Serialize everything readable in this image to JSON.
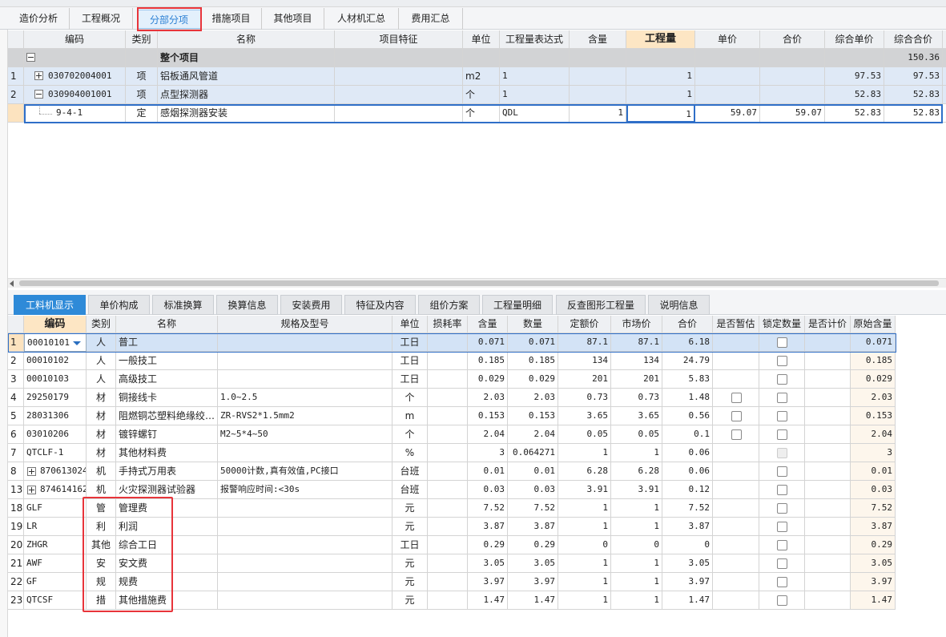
{
  "top_tabs": [
    "造价分析",
    "工程概况",
    "分部分项",
    "措施项目",
    "其他项目",
    "人材机汇总",
    "费用汇总"
  ],
  "upper_table": {
    "headers": [
      "编码",
      "类别",
      "名称",
      "项目特征",
      "单位",
      "工程量表达式",
      "含量",
      "工程量",
      "单价",
      "合价",
      "综合单价",
      "综合合价"
    ],
    "rows": [
      [
        null,
        null,
        null,
        "整个项目",
        null,
        null,
        null,
        null,
        null,
        null,
        null,
        null,
        "150.36"
      ],
      [
        "1",
        "030702004001",
        "项",
        "铝板通风管道",
        null,
        "m2",
        "1",
        null,
        "1",
        null,
        null,
        "97.53",
        "97.53"
      ],
      [
        "2",
        "030904001001",
        "项",
        "点型探测器",
        null,
        "个",
        "1",
        null,
        "1",
        null,
        null,
        "52.83",
        "52.83"
      ],
      [
        null,
        "9-4-1",
        "定",
        "感烟探测器安装",
        null,
        "个",
        "QDL",
        "1",
        "1",
        "59.07",
        "59.07",
        "52.83",
        "52.83"
      ]
    ]
  },
  "lower_tabs": [
    "工料机显示",
    "单价构成",
    "标准换算",
    "换算信息",
    "安装费用",
    "特征及内容",
    "组价方案",
    "工程量明细",
    "反查图形工程量",
    "说明信息"
  ],
  "lower_table": {
    "headers": [
      "编码",
      "类别",
      "名称",
      "规格及型号",
      "单位",
      "损耗率",
      "含量",
      "数量",
      "定额价",
      "市场价",
      "合价",
      "是否暂估",
      "锁定数量",
      "是否计价",
      "原始含量"
    ],
    "rows": [
      [
        "1",
        "00010101",
        "人",
        "普工",
        null,
        "工日",
        null,
        "0.071",
        "0.071",
        "87.1",
        "87.1",
        "6.18",
        null,
        null,
        null,
        "0.071"
      ],
      [
        "2",
        "00010102",
        "人",
        "一般技工",
        null,
        "工日",
        null,
        "0.185",
        "0.185",
        "134",
        "134",
        "24.79",
        null,
        null,
        null,
        "0.185"
      ],
      [
        "3",
        "00010103",
        "人",
        "高级技工",
        null,
        "工日",
        null,
        "0.029",
        "0.029",
        "201",
        "201",
        "5.83",
        null,
        null,
        null,
        "0.029"
      ],
      [
        "4",
        "29250179",
        "材",
        "铜接线卡",
        "1.0~2.5",
        "个",
        null,
        "2.03",
        "2.03",
        "0.73",
        "0.73",
        "1.48",
        null,
        null,
        null,
        "2.03"
      ],
      [
        "5",
        "28031306",
        "材",
        "阻燃铜芯塑料绝缘绞…",
        "ZR-RVS2*1.5mm2",
        "m",
        null,
        "0.153",
        "0.153",
        "3.65",
        "3.65",
        "0.56",
        null,
        null,
        null,
        "0.153"
      ],
      [
        "6",
        "03010206",
        "材",
        "镀锌螺钉",
        "M2~5*4~50",
        "个",
        null,
        "2.04",
        "2.04",
        "0.05",
        "0.05",
        "0.1",
        null,
        null,
        null,
        "2.04"
      ],
      [
        "7",
        "QTCLF-1",
        "材",
        "其他材料费",
        null,
        "%",
        null,
        "3",
        "0.064271",
        "1",
        "1",
        "0.06",
        null,
        null,
        null,
        "3"
      ],
      [
        "8",
        "870613024",
        "机",
        "手持式万用表",
        "50000计数,真有效值,PC接口",
        "台班",
        null,
        "0.01",
        "0.01",
        "6.28",
        "6.28",
        "0.06",
        null,
        null,
        null,
        "0.01"
      ],
      [
        "13",
        "874614162",
        "机",
        "火灾探测器试验器",
        "报警响应时间:<30s",
        "台班",
        null,
        "0.03",
        "0.03",
        "3.91",
        "3.91",
        "0.12",
        null,
        null,
        null,
        "0.03"
      ],
      [
        "18",
        "GLF",
        "管",
        "管理费",
        null,
        "元",
        null,
        "7.52",
        "7.52",
        "1",
        "1",
        "7.52",
        null,
        null,
        null,
        "7.52"
      ],
      [
        "19",
        "LR",
        "利",
        "利润",
        null,
        "元",
        null,
        "3.87",
        "3.87",
        "1",
        "1",
        "3.87",
        null,
        null,
        null,
        "3.87"
      ],
      [
        "20",
        "ZHGR",
        "其他",
        "综合工日",
        null,
        "工日",
        null,
        "0.29",
        "0.29",
        "0",
        "0",
        "0",
        null,
        null,
        null,
        "0.29"
      ],
      [
        "21",
        "AWF",
        "安",
        "安文费",
        null,
        "元",
        null,
        "3.05",
        "3.05",
        "1",
        "1",
        "3.05",
        null,
        null,
        null,
        "3.05"
      ],
      [
        "22",
        "GF",
        "规",
        "规费",
        null,
        "元",
        null,
        "3.97",
        "3.97",
        "1",
        "1",
        "3.97",
        null,
        null,
        null,
        "3.97"
      ],
      [
        "23",
        "QTCSF",
        "措",
        "其他措施费",
        null,
        "元",
        null,
        "1.47",
        "1.47",
        "1",
        "1",
        "1.47",
        null,
        null,
        null,
        "1.47"
      ]
    ]
  }
}
